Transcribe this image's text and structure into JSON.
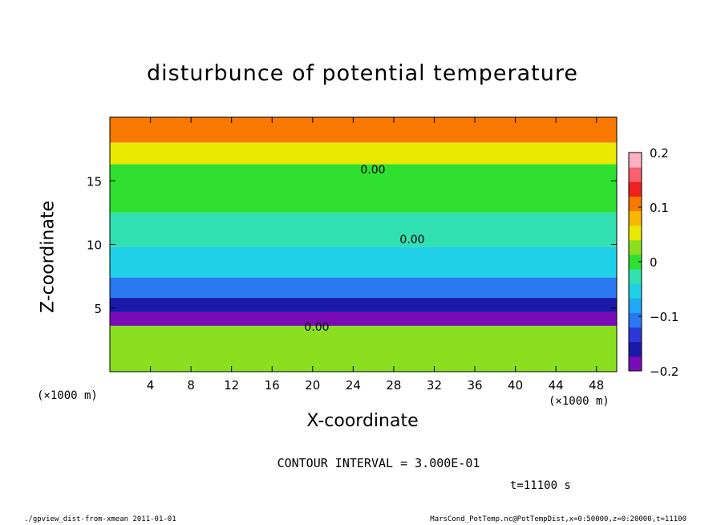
{
  "chart_data": {
    "type": "heatmap",
    "title": "disturbunce of potential temperature",
    "xlabel": "X-coordinate",
    "ylabel": "Z-coordinate",
    "x_unit_left": "(×1000 m)",
    "x_unit_right": "(×1000 m)",
    "xlim": [
      0,
      50
    ],
    "ylim": [
      0,
      20
    ],
    "x_ticks": [
      4,
      8,
      12,
      16,
      20,
      24,
      28,
      32,
      36,
      40,
      44,
      48
    ],
    "y_ticks": [
      5,
      10,
      15
    ],
    "colorbar": {
      "range": [
        -0.2,
        0.2
      ],
      "tick_labels": [
        "0.2",
        "0.1",
        "0",
        "−0.1",
        "−0.2"
      ],
      "tick_values": [
        0.2,
        0.1,
        0,
        -0.1,
        -0.2
      ]
    },
    "contour_labels": [
      "0.00",
      "0.00",
      "0.00"
    ],
    "contour_interval": "CONTOUR INTERVAL = 3.000E-01",
    "time": "t=11100 s",
    "bands": [
      {
        "z0": 18,
        "z1": 20,
        "value": 0.12
      },
      {
        "z0": 16.3,
        "z1": 18,
        "value": 0.06
      },
      {
        "z0": 12.5,
        "z1": 16.3,
        "value": 0.01
      },
      {
        "z0": 9.8,
        "z1": 12.5,
        "value": -0.02
      },
      {
        "z0": 7.4,
        "z1": 9.8,
        "value": -0.07
      },
      {
        "z0": 5.8,
        "z1": 7.4,
        "value": -0.13
      },
      {
        "z0": 4.7,
        "z1": 5.8,
        "value": -0.18
      },
      {
        "z0": 3.6,
        "z1": 4.7,
        "value": -0.22
      },
      {
        "z0": 0,
        "z1": 3.6,
        "value": 0.02
      }
    ]
  },
  "footer": {
    "left": "./gpview_dist-from-xmean   2011-01-01",
    "right": "MarsCond_PotTemp.nc@PotTempDist,x=0:50000,z=0:20000,t=11100"
  }
}
